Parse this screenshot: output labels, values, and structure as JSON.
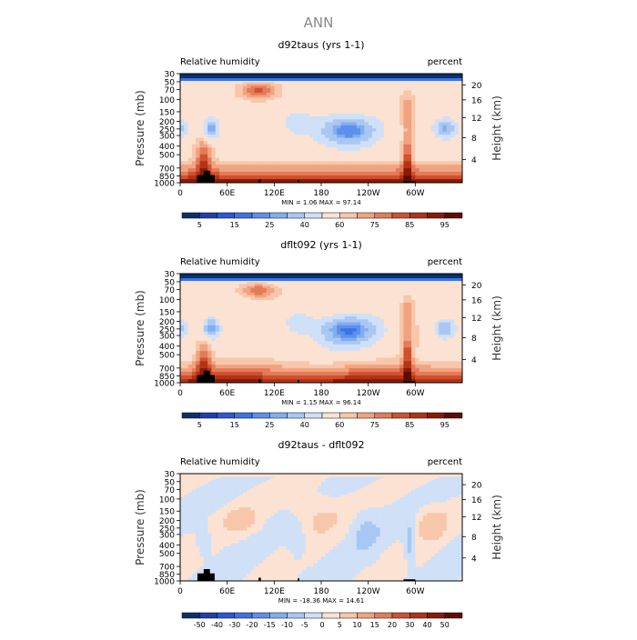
{
  "title": "ANN",
  "colors": {
    "diverging": [
      "#08306b",
      "#1f3fb0",
      "#2a58d6",
      "#3c73e6",
      "#5c90ec",
      "#82adf0",
      "#a9c7f3",
      "#cfe0f7",
      "#fbe2d2",
      "#f8c6aa",
      "#f1a380",
      "#e47b58",
      "#d0512f",
      "#b23417",
      "#8c1a08",
      "#5e0c02"
    ],
    "orography": "#000000"
  },
  "chart_data": [
    {
      "type": "heatmap",
      "title": "d92taus (yrs 1-1)",
      "left_label": "Relative humidity",
      "right_label": "percent",
      "ylabel": "Pressure (mb)",
      "ylabel_right": "Height (km)",
      "xlabel": "",
      "pressure_ticks": [
        30,
        50,
        70,
        100,
        150,
        200,
        250,
        300,
        400,
        500,
        700,
        850,
        1000
      ],
      "pressure_tick_labels": [
        "30",
        "50",
        "70",
        "100",
        "150",
        "200",
        "250",
        "300",
        "400",
        "500",
        "700",
        "850",
        "1000"
      ],
      "height_ticks": [
        20,
        16,
        12,
        8,
        4
      ],
      "lon_ticks": [
        0,
        60,
        120,
        180,
        240,
        300
      ],
      "lon_tick_labels": [
        "0",
        "60E",
        "120E",
        "180",
        "120W",
        "60W"
      ],
      "stats": "MIN =     1.06   MAX =    97.14",
      "colorbar_levels": [
        5,
        10,
        15,
        20,
        25,
        30,
        40,
        50,
        60,
        65,
        70,
        75,
        80,
        85,
        90,
        95
      ],
      "colorbar_labels": [
        "5",
        "15",
        "25",
        "40",
        "60",
        "75",
        "85",
        "95"
      ],
      "range": [
        0,
        100
      ],
      "kind": "rh"
    },
    {
      "type": "heatmap",
      "title": "dflt092 (yrs 1-1)",
      "left_label": "Relative humidity",
      "right_label": "percent",
      "ylabel": "Pressure (mb)",
      "ylabel_right": "Height (km)",
      "xlabel": "",
      "pressure_ticks": [
        30,
        50,
        70,
        100,
        150,
        200,
        250,
        300,
        400,
        500,
        700,
        850,
        1000
      ],
      "pressure_tick_labels": [
        "30",
        "50",
        "70",
        "100",
        "150",
        "200",
        "250",
        "300",
        "400",
        "500",
        "700",
        "850",
        "1000"
      ],
      "height_ticks": [
        20,
        16,
        12,
        8,
        4
      ],
      "lon_ticks": [
        0,
        60,
        120,
        180,
        240,
        300
      ],
      "lon_tick_labels": [
        "0",
        "60E",
        "120E",
        "180",
        "120W",
        "60W"
      ],
      "stats": "MIN =     1.15   MAX =    96.14",
      "colorbar_levels": [
        5,
        10,
        15,
        20,
        25,
        30,
        40,
        50,
        60,
        65,
        70,
        75,
        80,
        85,
        90,
        95
      ],
      "colorbar_labels": [
        "5",
        "15",
        "25",
        "40",
        "60",
        "75",
        "85",
        "95"
      ],
      "range": [
        0,
        100
      ],
      "kind": "rh"
    },
    {
      "type": "heatmap",
      "title": "d92taus - dflt092",
      "left_label": "Relative humidity",
      "right_label": "percent",
      "ylabel": "Pressure (mb)",
      "ylabel_right": "Height (km)",
      "xlabel": "",
      "pressure_ticks": [
        30,
        50,
        70,
        100,
        150,
        200,
        250,
        300,
        400,
        500,
        700,
        850,
        1000
      ],
      "pressure_tick_labels": [
        "30",
        "50",
        "70",
        "100",
        "150",
        "200",
        "250",
        "300",
        "400",
        "500",
        "700",
        "850",
        "1000"
      ],
      "height_ticks": [
        20,
        16,
        12,
        8,
        4
      ],
      "lon_ticks": [
        0,
        60,
        120,
        180,
        240,
        300
      ],
      "lon_tick_labels": [
        "0",
        "60E",
        "120E",
        "180",
        "120W",
        "60W"
      ],
      "stats": "MIN =   -18.36   MAX =    14.61",
      "colorbar_levels": [
        -50,
        -40,
        -30,
        -20,
        -15,
        -10,
        -5,
        0,
        5,
        10,
        15,
        20,
        30,
        40,
        50
      ],
      "colorbar_labels": [
        "-50",
        "-40",
        "-30",
        "-20",
        "-15",
        "-10",
        "-5",
        "0",
        "5",
        "10",
        "15",
        "20",
        "30",
        "40",
        "50"
      ],
      "range": [
        -60,
        60
      ],
      "kind": "diff"
    }
  ]
}
